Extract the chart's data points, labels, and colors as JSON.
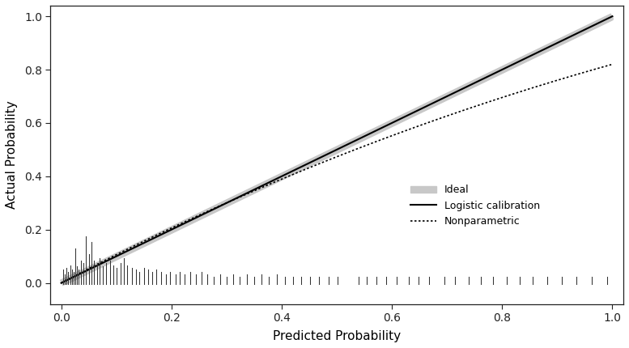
{
  "xlabel": "Predicted Probability",
  "ylabel": "Actual Probability",
  "xlim": [
    -0.02,
    1.02
  ],
  "ylim": [
    -0.08,
    1.04
  ],
  "xticks": [
    0.0,
    0.2,
    0.4,
    0.6,
    0.8,
    1.0
  ],
  "yticks": [
    0.0,
    0.2,
    0.4,
    0.6,
    0.8,
    1.0
  ],
  "ideal_color": "#c8c8c8",
  "ideal_linewidth": 6,
  "logistic_color": "#000000",
  "logistic_linewidth": 1.5,
  "nonparametric_color": "#000000",
  "nonparametric_linewidth": 1.2,
  "legend_labels": [
    "Ideal",
    "Logistic calibration",
    "Nonparametric"
  ],
  "background_color": "#ffffff",
  "rug_color": "#333333",
  "rug_positions": [
    0.003,
    0.006,
    0.01,
    0.013,
    0.016,
    0.019,
    0.022,
    0.025,
    0.028,
    0.032,
    0.036,
    0.04,
    0.045,
    0.05,
    0.055,
    0.06,
    0.065,
    0.07,
    0.076,
    0.082,
    0.088,
    0.094,
    0.1,
    0.108,
    0.114,
    0.12,
    0.128,
    0.135,
    0.142,
    0.15,
    0.158,
    0.165,
    0.173,
    0.181,
    0.19,
    0.198,
    0.207,
    0.215,
    0.224,
    0.234,
    0.244,
    0.254,
    0.265,
    0.276,
    0.288,
    0.3,
    0.312,
    0.324,
    0.337,
    0.35,
    0.363,
    0.377,
    0.391,
    0.406,
    0.421,
    0.436,
    0.452,
    0.468,
    0.485,
    0.502,
    0.54,
    0.555,
    0.572,
    0.59,
    0.608,
    0.63,
    0.648,
    0.668,
    0.695,
    0.715,
    0.74,
    0.762,
    0.784,
    0.808,
    0.832,
    0.856,
    0.882,
    0.908,
    0.935,
    0.962,
    0.99
  ],
  "rug_heights_norm": [
    0.12,
    0.08,
    0.14,
    0.1,
    0.16,
    0.12,
    0.1,
    0.3,
    0.15,
    0.12,
    0.2,
    0.18,
    0.4,
    0.25,
    0.35,
    0.2,
    0.18,
    0.22,
    0.15,
    0.18,
    0.2,
    0.16,
    0.14,
    0.18,
    0.22,
    0.16,
    0.14,
    0.12,
    0.1,
    0.14,
    0.12,
    0.1,
    0.12,
    0.1,
    0.08,
    0.1,
    0.08,
    0.1,
    0.08,
    0.1,
    0.08,
    0.1,
    0.08,
    0.06,
    0.08,
    0.06,
    0.08,
    0.06,
    0.08,
    0.06,
    0.08,
    0.06,
    0.08,
    0.06,
    0.06,
    0.06,
    0.06,
    0.06,
    0.06,
    0.06,
    0.06,
    0.06,
    0.06,
    0.06,
    0.06,
    0.06,
    0.06,
    0.06,
    0.06,
    0.06,
    0.06,
    0.06,
    0.06,
    0.06,
    0.06,
    0.06,
    0.06,
    0.06,
    0.06,
    0.06,
    0.06
  ]
}
